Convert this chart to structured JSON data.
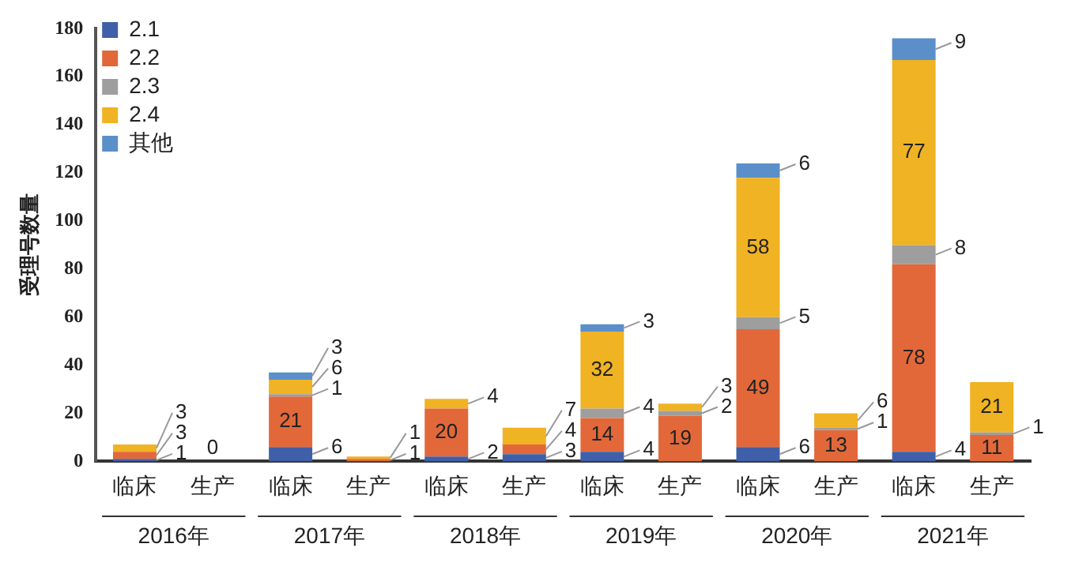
{
  "chart_data": {
    "type": "bar",
    "stacked": true,
    "ylabel": "受理号数量",
    "categories": [
      "临床",
      "生产",
      "临床",
      "生产",
      "临床",
      "生产",
      "临床",
      "生产",
      "临床",
      "生产",
      "临床",
      "生产"
    ],
    "annotations": [
      "2016年",
      "2017年",
      "2018年",
      "2019年",
      "2020年",
      "2021年"
    ],
    "series": [
      {
        "name": "2.1",
        "color": "#3f5fa8",
        "values": [
          1,
          null,
          6,
          null,
          2,
          3,
          4,
          null,
          6,
          null,
          4,
          null
        ],
        "value_labels": [
          "1",
          null,
          "6",
          null,
          "2",
          "3",
          "4",
          null,
          "6",
          null,
          "4",
          null
        ]
      },
      {
        "name": "2.2",
        "color": "#e2683a",
        "values": [
          3,
          0,
          21,
          1,
          20,
          4,
          14,
          19,
          49,
          13,
          78,
          11
        ],
        "value_labels": [
          "3",
          "0",
          "21",
          "1",
          "20",
          "4",
          "14",
          "19",
          "49",
          "13",
          "78",
          "11"
        ]
      },
      {
        "name": "2.3",
        "color": "#9e9e9e",
        "values": [
          null,
          null,
          1,
          null,
          null,
          null,
          4,
          2,
          5,
          1,
          8,
          1
        ],
        "value_labels": [
          null,
          null,
          "1",
          null,
          null,
          null,
          "4",
          "2",
          "5",
          "1",
          "8",
          "1"
        ]
      },
      {
        "name": "2.4",
        "color": "#f0b323",
        "values": [
          3,
          null,
          6,
          1,
          4,
          7,
          32,
          3,
          58,
          6,
          77,
          21
        ],
        "value_labels": [
          "3",
          null,
          "6",
          "1",
          "4",
          "7",
          "32",
          "3",
          "58",
          "6",
          "77",
          "21"
        ]
      },
      {
        "name": "其他",
        "color": "#5b8fc9",
        "values": [
          null,
          null,
          3,
          null,
          null,
          null,
          3,
          null,
          6,
          null,
          9,
          null
        ],
        "value_labels": [
          null,
          null,
          "3",
          null,
          null,
          null,
          "3",
          null,
          "6",
          null,
          "9",
          null
        ]
      }
    ],
    "ylim": [
      0,
      180
    ],
    "yticks": [
      0,
      20,
      40,
      60,
      80,
      100,
      120,
      140,
      160,
      180
    ],
    "grid": false,
    "legend": "top left"
  }
}
